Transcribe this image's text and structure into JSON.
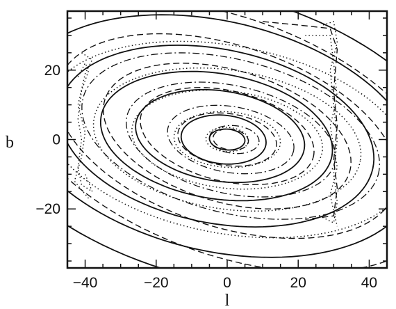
{
  "chart_data": {
    "type": "line",
    "title": "",
    "xlabel": "l",
    "ylabel": "b",
    "xlim": [
      -45,
      45
    ],
    "ylim": [
      -37,
      37
    ],
    "x_ticks": [
      -40,
      -20,
      0,
      20,
      40
    ],
    "y_ticks": [
      -20,
      0,
      20
    ],
    "grid": false,
    "legend": "none",
    "line_color": "#111111",
    "series": [
      {
        "style": "solid",
        "contours": [
          {
            "cx": 0,
            "cy": 0,
            "a": 5,
            "b": 3,
            "tilt": -5
          },
          {
            "cx": -1,
            "cy": 0,
            "a": 12,
            "b": 7,
            "tilt": -6
          },
          {
            "cx": -2,
            "cy": 1,
            "a": 24,
            "b": 13,
            "tilt": -9
          },
          {
            "cx": -3,
            "cy": 1,
            "a": 33,
            "b": 18,
            "tilt": -10
          },
          {
            "cx": -3,
            "cy": 1,
            "a": 45,
            "b": 25,
            "tilt": -12
          },
          {
            "cx": -3,
            "cy": 1,
            "a": 58,
            "b": 33,
            "tilt": -14
          },
          {
            "cx": -3,
            "cy": 1,
            "a": 72,
            "b": 41,
            "tilt": -16
          }
        ]
      },
      {
        "style": "dashed",
        "contours": [
          {
            "cx": 1,
            "cy": 0,
            "a": 5,
            "b": 3,
            "tilt": -8
          },
          {
            "cx": 0,
            "cy": 0,
            "a": 14,
            "b": 7.5,
            "tilt": -8
          },
          {
            "cx": 0,
            "cy": 1,
            "a": 25,
            "b": 13,
            "tilt": -14
          },
          {
            "cx": 0,
            "cy": 1,
            "a": 36,
            "b": 19,
            "tilt": -17
          },
          {
            "cx": 0,
            "cy": 1,
            "a": 50,
            "b": 26,
            "tilt": -19
          },
          {
            "cx": 0,
            "cy": 1,
            "a": 64,
            "b": 34,
            "tilt": -21
          }
        ]
      },
      {
        "style": "dotted",
        "contours": [
          {
            "cx": 0,
            "cy": 0,
            "a": 6,
            "b": 3.5,
            "tilt": -3
          },
          {
            "cx": 0,
            "cy": 0,
            "a": 15,
            "b": 8,
            "tilt": -4
          },
          {
            "cx": 0,
            "cy": 0,
            "a": 27,
            "b": 14,
            "tilt": -7
          },
          {
            "cx": 0,
            "cy": 0,
            "a": 38,
            "b": 20,
            "tilt": -9
          },
          {
            "cx": 0,
            "cy": 0,
            "a": 52,
            "b": 27,
            "tilt": -11
          }
        ]
      },
      {
        "style": "dashdot",
        "contours": [
          {
            "cx": 2,
            "cy": 0,
            "a": 7,
            "b": 4,
            "tilt": -6
          },
          {
            "cx": 1,
            "cy": 0,
            "a": 18,
            "b": 9.5,
            "tilt": -10
          },
          {
            "cx": 1,
            "cy": 0,
            "a": 30,
            "b": 15.5,
            "tilt": -13
          },
          {
            "cx": 1,
            "cy": 1,
            "a": 43,
            "b": 22,
            "tilt": -15
          }
        ]
      }
    ],
    "edge_features": [
      {
        "style": "dotted",
        "points": [
          [
            -42,
            18
          ],
          [
            -40,
            22
          ],
          [
            -39,
            20
          ],
          [
            -41,
            14
          ],
          [
            -42,
            6
          ],
          [
            -41,
            0
          ],
          [
            -42,
            -8
          ],
          [
            -41,
            -13
          ],
          [
            -38,
            -15
          ],
          [
            -40,
            -10
          ]
        ]
      },
      {
        "style": "dotted",
        "points": [
          [
            -41,
            25
          ],
          [
            -38,
            23
          ],
          [
            -40,
            19
          ],
          [
            -42,
            10
          ],
          [
            -40,
            2
          ],
          [
            -41,
            -5
          ],
          [
            -43,
            -12
          ],
          [
            -39,
            -17
          ]
        ]
      },
      {
        "style": "dotted",
        "points": [
          [
            27,
            33
          ],
          [
            30,
            34
          ],
          [
            31,
            28
          ],
          [
            29,
            20
          ],
          [
            30,
            10
          ],
          [
            31,
            0
          ],
          [
            30,
            -10
          ],
          [
            31,
            -18
          ],
          [
            30,
            -24
          ],
          [
            26,
            -22
          ]
        ]
      },
      {
        "style": "dotted",
        "points": [
          [
            22,
            30
          ],
          [
            29,
            30
          ],
          [
            30,
            22
          ],
          [
            31,
            12
          ],
          [
            29,
            4
          ],
          [
            30,
            -2
          ],
          [
            31,
            -8
          ],
          [
            29,
            -16
          ],
          [
            31,
            -25
          ]
        ]
      },
      {
        "style": "dashed",
        "points": [
          [
            10,
            34
          ],
          [
            20,
            33
          ],
          [
            29,
            32
          ],
          [
            31,
            26
          ],
          [
            30,
            14
          ],
          [
            31,
            4
          ],
          [
            30,
            -6
          ],
          [
            31,
            -14
          ],
          [
            30,
            -22
          ],
          [
            22,
            -23
          ]
        ]
      }
    ]
  }
}
